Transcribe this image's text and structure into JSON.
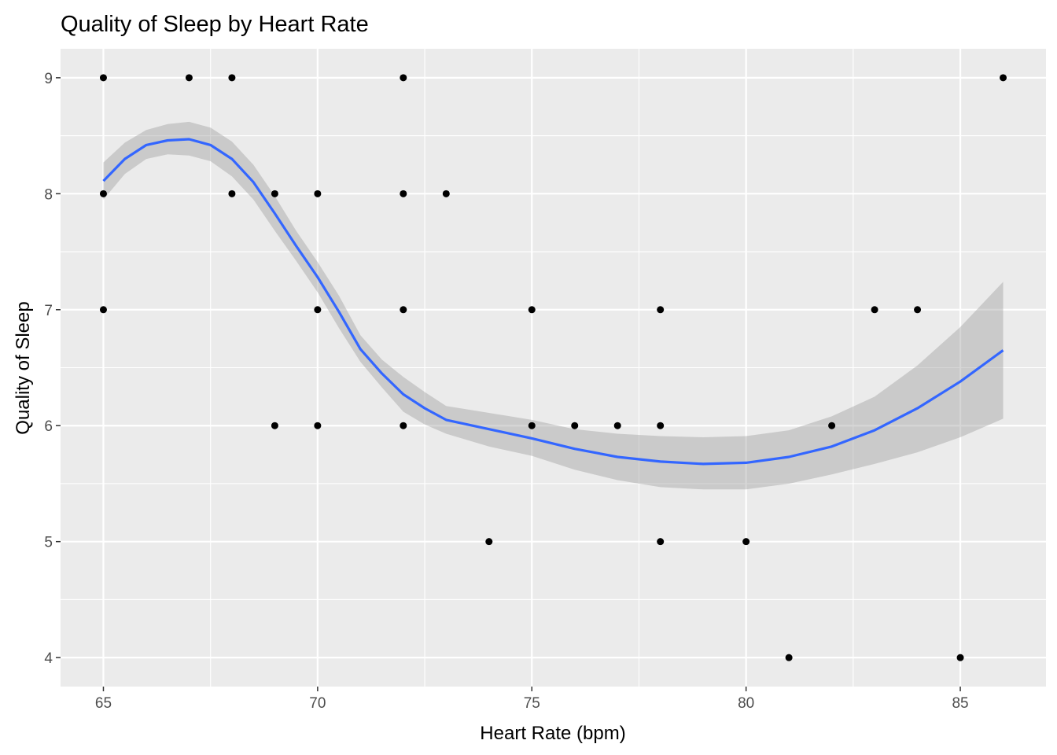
{
  "chart_data": {
    "type": "scatter",
    "title": "Quality of Sleep by Heart Rate",
    "xlabel": "Heart Rate (bpm)",
    "ylabel": "Quality of Sleep",
    "xlim": [
      64,
      87
    ],
    "ylim": [
      3.75,
      9.25
    ],
    "x_ticks": [
      65,
      70,
      75,
      80,
      85
    ],
    "y_ticks": [
      4,
      5,
      6,
      7,
      8,
      9
    ],
    "grid": true,
    "points": [
      {
        "x": 65,
        "y": 9
      },
      {
        "x": 65,
        "y": 8
      },
      {
        "x": 65,
        "y": 7
      },
      {
        "x": 67,
        "y": 9
      },
      {
        "x": 68,
        "y": 9
      },
      {
        "x": 68,
        "y": 8
      },
      {
        "x": 69,
        "y": 8
      },
      {
        "x": 69,
        "y": 6
      },
      {
        "x": 70,
        "y": 8
      },
      {
        "x": 70,
        "y": 7
      },
      {
        "x": 70,
        "y": 6
      },
      {
        "x": 72,
        "y": 9
      },
      {
        "x": 72,
        "y": 8
      },
      {
        "x": 72,
        "y": 7
      },
      {
        "x": 72,
        "y": 6
      },
      {
        "x": 73,
        "y": 8
      },
      {
        "x": 74,
        "y": 5
      },
      {
        "x": 75,
        "y": 7
      },
      {
        "x": 75,
        "y": 6
      },
      {
        "x": 76,
        "y": 6
      },
      {
        "x": 77,
        "y": 6
      },
      {
        "x": 78,
        "y": 7
      },
      {
        "x": 78,
        "y": 6
      },
      {
        "x": 78,
        "y": 5
      },
      {
        "x": 80,
        "y": 5
      },
      {
        "x": 81,
        "y": 4
      },
      {
        "x": 82,
        "y": 6
      },
      {
        "x": 83,
        "y": 7
      },
      {
        "x": 84,
        "y": 7
      },
      {
        "x": 85,
        "y": 4
      },
      {
        "x": 86,
        "y": 9
      }
    ],
    "smooth": {
      "method": "loess",
      "color": "#3366ff",
      "band_color": "#999999",
      "x": [
        65,
        65.5,
        66,
        66.5,
        67,
        67.5,
        68,
        68.5,
        69,
        69.5,
        70,
        70.5,
        71,
        71.5,
        72,
        72.5,
        73,
        74,
        75,
        76,
        77,
        78,
        79,
        80,
        81,
        82,
        83,
        84,
        85,
        86
      ],
      "y": [
        8.11,
        8.3,
        8.42,
        8.46,
        8.47,
        8.42,
        8.3,
        8.1,
        7.83,
        7.55,
        7.28,
        6.98,
        6.66,
        6.45,
        6.27,
        6.15,
        6.05,
        5.97,
        5.89,
        5.8,
        5.73,
        5.69,
        5.67,
        5.68,
        5.73,
        5.82,
        5.96,
        6.15,
        6.38,
        6.65
      ],
      "ymin": [
        7.95,
        8.17,
        8.3,
        8.34,
        8.33,
        8.28,
        8.15,
        7.95,
        7.68,
        7.42,
        7.15,
        6.84,
        6.55,
        6.33,
        6.12,
        6.01,
        5.93,
        5.82,
        5.74,
        5.62,
        5.53,
        5.47,
        5.45,
        5.45,
        5.5,
        5.58,
        5.67,
        5.77,
        5.9,
        6.06
      ],
      "ymax": [
        8.27,
        8.44,
        8.55,
        8.6,
        8.62,
        8.57,
        8.45,
        8.25,
        7.98,
        7.68,
        7.41,
        7.12,
        6.78,
        6.57,
        6.42,
        6.29,
        6.17,
        6.11,
        6.05,
        5.97,
        5.93,
        5.91,
        5.9,
        5.91,
        5.96,
        6.08,
        6.25,
        6.52,
        6.85,
        7.24
      ]
    }
  }
}
